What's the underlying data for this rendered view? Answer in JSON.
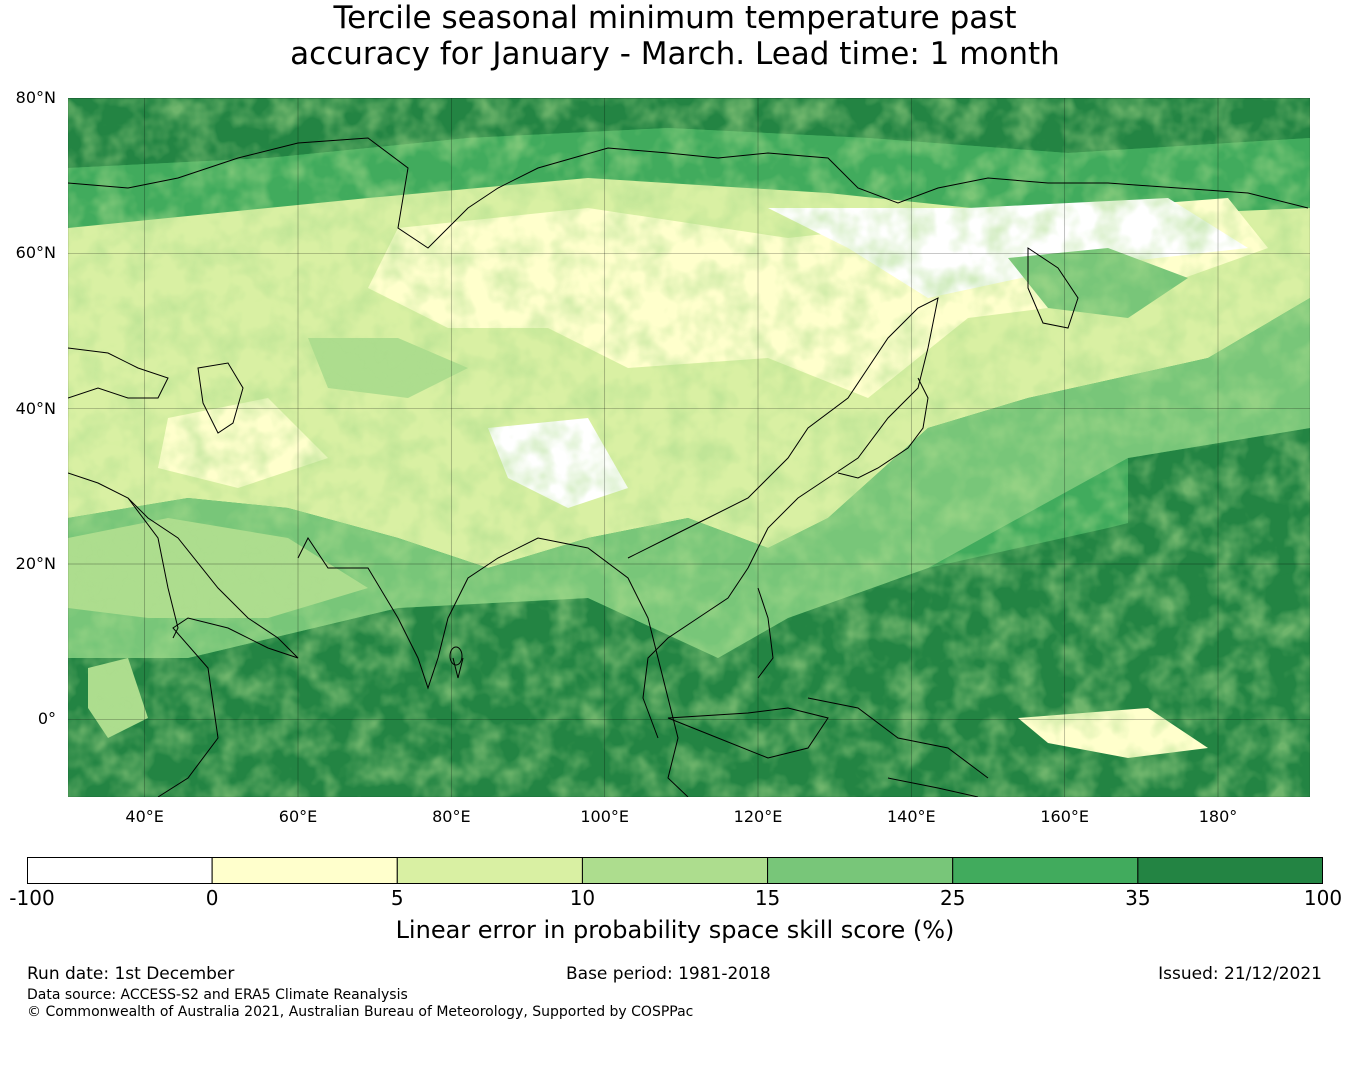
{
  "title_line1": "Tercile seasonal minimum temperature past",
  "title_line2": "accuracy for January - March. Lead time: 1 month",
  "map": {
    "extent_lon": [
      30,
      192
    ],
    "extent_lat": [
      -10,
      80
    ],
    "lat_ticks": [
      {
        "value": 80,
        "label": "80°N"
      },
      {
        "value": 60,
        "label": "60°N"
      },
      {
        "value": 40,
        "label": "40°N"
      },
      {
        "value": 20,
        "label": "20°N"
      },
      {
        "value": 0,
        "label": "0°"
      }
    ],
    "lon_ticks": [
      {
        "value": 40,
        "label": "40°E"
      },
      {
        "value": 60,
        "label": "60°E"
      },
      {
        "value": 80,
        "label": "80°E"
      },
      {
        "value": 100,
        "label": "100°E"
      },
      {
        "value": 120,
        "label": "120°E"
      },
      {
        "value": 140,
        "label": "140°E"
      },
      {
        "value": 160,
        "label": "160°E"
      },
      {
        "value": 180,
        "label": "180°"
      }
    ],
    "grid": true
  },
  "colorbar": {
    "bounds": [
      "-100",
      "0",
      "5",
      "10",
      "15",
      "25",
      "35",
      "100"
    ],
    "colors": [
      "#ffffff",
      "#ffffcc",
      "#d9f0a3",
      "#addd8e",
      "#78c679",
      "#41ab5d",
      "#238443"
    ],
    "label": "Linear error in probability space skill score (%)"
  },
  "footer": {
    "run_date": "Run date: 1st December",
    "base_period": "Base period: 1981-2018",
    "issued": "Issued: 21/12/2021",
    "data_source": "Data source: ACCESS-S2 and ERA5 Climate Reanalysis",
    "copyright": "© Commonwealth of Australia 2021, Australian Bureau of Meteorology, Supported by COSPPac"
  }
}
